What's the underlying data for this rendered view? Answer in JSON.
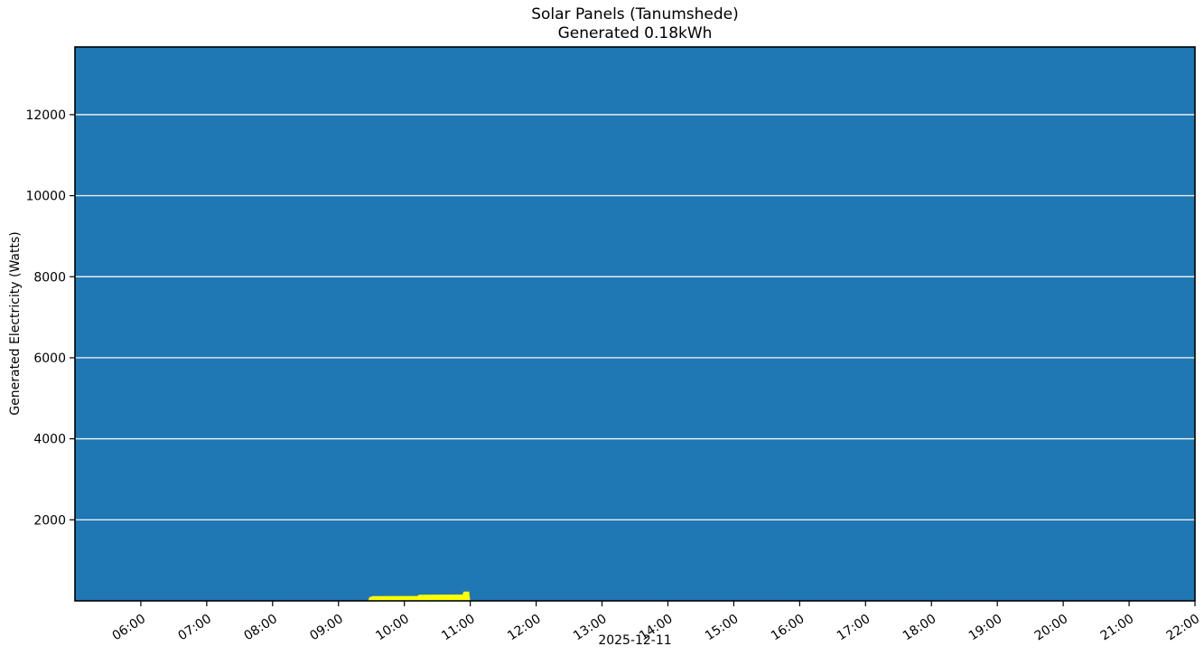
{
  "title": {
    "line1": "Solar Panels (Tanumshede)",
    "line2": "Generated 0.18kWh"
  },
  "axes": {
    "ylabel": "Generated Electricity (Watts)",
    "xlabel": "2025-12-11"
  },
  "colors": {
    "figure_background": "#ffffff",
    "plot_fill": "#1f77b4",
    "generated_fill": "#ffff00",
    "grid": "#e9eff5",
    "spine": "#000000",
    "text": "#000000"
  },
  "chart_data": {
    "type": "area",
    "title": "Solar Panels (Tanumshede)\nGenerated 0.18kWh",
    "xlabel": "2025-12-11",
    "ylabel": "Generated Electricity (Watts)",
    "x_range": [
      "05:00",
      "22:00"
    ],
    "ylim": [
      0,
      13670
    ],
    "yticks": [
      2000,
      4000,
      6000,
      8000,
      10000,
      12000
    ],
    "xticks": [
      "06:00",
      "07:00",
      "08:00",
      "09:00",
      "10:00",
      "11:00",
      "12:00",
      "13:00",
      "14:00",
      "15:00",
      "16:00",
      "17:00",
      "18:00",
      "19:00",
      "20:00",
      "21:00",
      "22:00"
    ],
    "grid": "horizontal",
    "legend": "none",
    "x_tick_label_rotation_deg": -33,
    "series": [
      {
        "name": "plot-area-fill",
        "color": "#1f77b4",
        "note": "solid fill covering the entire plot area for the full time range"
      },
      {
        "name": "generated-electricity",
        "color": "#ffff00",
        "units": "Watts",
        "points": [
          [
            "05:00",
            0
          ],
          [
            "09:27",
            0
          ],
          [
            "09:28",
            90
          ],
          [
            "09:31",
            115
          ],
          [
            "10:12",
            120
          ],
          [
            "10:13",
            150
          ],
          [
            "10:53",
            155
          ],
          [
            "10:54",
            230
          ],
          [
            "10:59",
            230
          ],
          [
            "11:00",
            0
          ],
          [
            "22:00",
            0
          ]
        ]
      }
    ]
  }
}
